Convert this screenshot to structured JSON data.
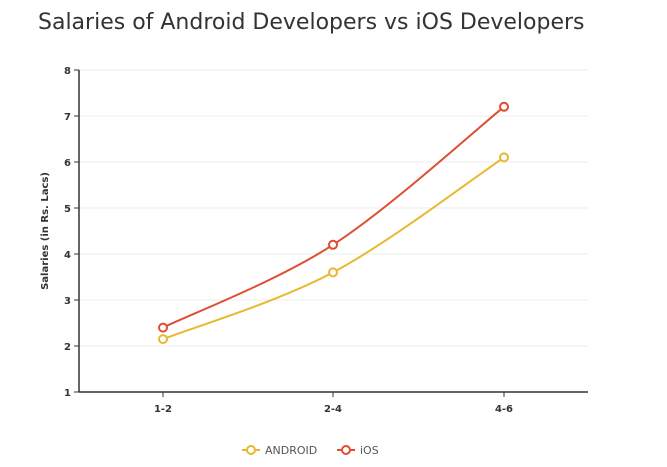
{
  "chart_data": {
    "type": "line",
    "title": "Salaries of Android Developers vs iOS Developers",
    "xlabel": "",
    "ylabel": "Salaries (in Rs. Lacs)",
    "categories": [
      "1-2",
      "2-4",
      "4-6"
    ],
    "ylim": [
      1,
      8
    ],
    "yticks": [
      1,
      2,
      3,
      4,
      5,
      6,
      7,
      8
    ],
    "grid": true,
    "legend": "bottom",
    "series": [
      {
        "name": "ANDROID",
        "color": "#E8B830",
        "values": [
          2.15,
          3.6,
          6.1
        ]
      },
      {
        "name": "iOS",
        "color": "#DE4E33",
        "values": [
          2.4,
          4.2,
          7.2
        ]
      }
    ]
  }
}
